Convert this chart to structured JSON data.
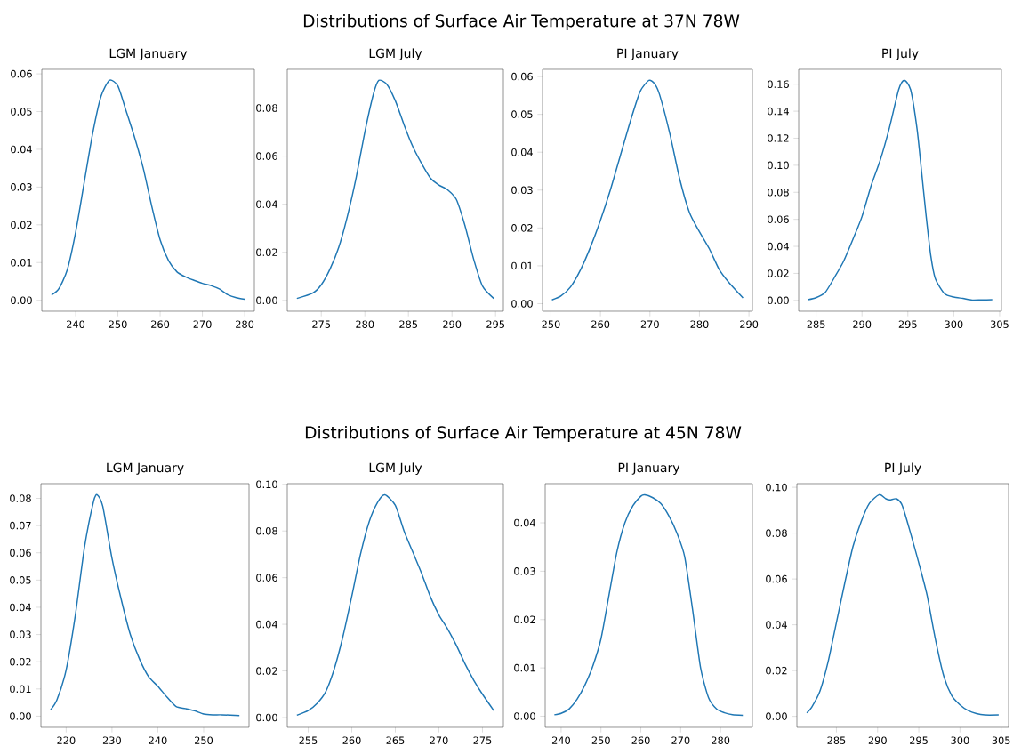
{
  "chart_data": [
    {
      "type": "line",
      "title": "LGM January",
      "annotations": [
        "Distributions of Surface Air Temperature at 37N 78W"
      ],
      "color": "#1f77b4",
      "x": [
        234.3,
        236,
        238,
        240,
        242,
        244,
        246,
        248,
        250,
        252,
        254,
        256,
        258,
        260,
        262,
        264,
        266,
        268,
        270,
        272,
        274,
        276,
        278,
        280
      ],
      "values": [
        0.0014,
        0.003,
        0.008,
        0.018,
        0.031,
        0.044,
        0.054,
        0.0583,
        0.0568,
        0.05,
        0.043,
        0.035,
        0.025,
        0.016,
        0.0105,
        0.0075,
        0.0062,
        0.0053,
        0.0045,
        0.0039,
        0.003,
        0.0015,
        0.0007,
        0.0003
      ],
      "xlim": [
        232,
        282.3
      ],
      "ylim": [
        -0.0029,
        0.0612
      ],
      "xticks": [
        240,
        250,
        260,
        270,
        280
      ],
      "yticks": [
        {
          "value": 0,
          "label": "0.00"
        },
        {
          "value": 0.01,
          "label": "0.01"
        },
        {
          "value": 0.02,
          "label": "0.02"
        },
        {
          "value": 0.03,
          "label": "0.03"
        },
        {
          "value": 0.04,
          "label": "0.04"
        },
        {
          "value": 0.05,
          "label": "0.05"
        },
        {
          "value": 0.06,
          "label": "0.06"
        }
      ]
    },
    {
      "type": "line",
      "title": "LGM July",
      "color": "#1f77b4",
      "x": [
        272.2,
        274,
        275,
        276,
        277,
        278,
        279,
        280,
        281,
        281.6,
        282.5,
        283.5,
        284.5,
        285.5,
        286.5,
        287.5,
        288.5,
        289.5,
        290.5,
        291.5,
        292.5,
        293.5,
        294.8
      ],
      "values": [
        0.0008,
        0.003,
        0.0065,
        0.013,
        0.022,
        0.035,
        0.051,
        0.07,
        0.086,
        0.0915,
        0.09,
        0.083,
        0.073,
        0.064,
        0.057,
        0.051,
        0.048,
        0.046,
        0.042,
        0.031,
        0.017,
        0.006,
        0.0008
      ],
      "xlim": [
        271.1,
        295.9
      ],
      "ylim": [
        -0.0045,
        0.0961
      ],
      "xticks": [
        275,
        280,
        285,
        290,
        295
      ],
      "yticks": [
        {
          "value": 0,
          "label": "0.00"
        },
        {
          "value": 0.02,
          "label": "0.02"
        },
        {
          "value": 0.04,
          "label": "0.04"
        },
        {
          "value": 0.06,
          "label": "0.06"
        },
        {
          "value": 0.08,
          "label": "0.08"
        }
      ]
    },
    {
      "type": "line",
      "title": "PI January",
      "color": "#1f77b4",
      "x": [
        250.2,
        252,
        254,
        256,
        258,
        260,
        262,
        264,
        266,
        268,
        269.8,
        271,
        272,
        274,
        276,
        278,
        280,
        282,
        284,
        286,
        288.8
      ],
      "values": [
        0.001,
        0.002,
        0.0045,
        0.009,
        0.015,
        0.022,
        0.03,
        0.039,
        0.048,
        0.056,
        0.059,
        0.058,
        0.055,
        0.045,
        0.033,
        0.024,
        0.019,
        0.0145,
        0.009,
        0.0055,
        0.0015
      ],
      "xlim": [
        248.3,
        290.7
      ],
      "ylim": [
        -0.002,
        0.0619
      ],
      "xticks": [
        250,
        260,
        270,
        280,
        290
      ],
      "yticks": [
        {
          "value": 0,
          "label": "0.00"
        },
        {
          "value": 0.01,
          "label": "0.01"
        },
        {
          "value": 0.02,
          "label": "0.02"
        },
        {
          "value": 0.03,
          "label": "0.03"
        },
        {
          "value": 0.04,
          "label": "0.04"
        },
        {
          "value": 0.05,
          "label": "0.05"
        },
        {
          "value": 0.06,
          "label": "0.06"
        }
      ]
    },
    {
      "type": "line",
      "title": "PI July",
      "color": "#1f77b4",
      "x": [
        284.1,
        285,
        286,
        287,
        288,
        289,
        290,
        291,
        292,
        293,
        294,
        294.6,
        295.3,
        296,
        296.5,
        297,
        297.5,
        298,
        299,
        300,
        301,
        302,
        303,
        304.2
      ],
      "values": [
        0.0005,
        0.002,
        0.006,
        0.017,
        0.029,
        0.045,
        0.062,
        0.085,
        0.104,
        0.128,
        0.156,
        0.163,
        0.156,
        0.127,
        0.095,
        0.062,
        0.033,
        0.016,
        0.005,
        0.0025,
        0.0015,
        0.0003,
        0.0004,
        0.0005
      ],
      "xlim": [
        283.1,
        305.2
      ],
      "ylim": [
        -0.008,
        0.171
      ],
      "xticks": [
        285,
        290,
        295,
        300,
        305
      ],
      "yticks": [
        {
          "value": 0,
          "label": "0.00"
        },
        {
          "value": 0.02,
          "label": "0.02"
        },
        {
          "value": 0.04,
          "label": "0.04"
        },
        {
          "value": 0.06,
          "label": "0.06"
        },
        {
          "value": 0.08,
          "label": "0.08"
        },
        {
          "value": 0.1,
          "label": "0.10"
        },
        {
          "value": 0.12,
          "label": "0.12"
        },
        {
          "value": 0.14,
          "label": "0.14"
        },
        {
          "value": 0.16,
          "label": "0.16"
        }
      ]
    },
    {
      "type": "line",
      "title": "LGM January",
      "annotations": [
        "Distributions of Surface Air Temperature at 45N 78W"
      ],
      "color": "#1f77b4",
      "x": [
        216.6,
        218,
        220,
        222,
        224,
        226,
        226.8,
        228,
        230,
        232,
        234,
        236,
        238,
        240,
        242,
        244,
        246,
        248,
        250,
        252,
        254,
        257.8
      ],
      "values": [
        0.0023,
        0.006,
        0.017,
        0.037,
        0.062,
        0.079,
        0.0813,
        0.077,
        0.058,
        0.043,
        0.03,
        0.021,
        0.0145,
        0.011,
        0.007,
        0.0035,
        0.0028,
        0.002,
        0.0008,
        0.0005,
        0.0005,
        0.0002
      ],
      "xlim": [
        214.5,
        259.9
      ],
      "ylim": [
        -0.0041,
        0.0854
      ],
      "xticks": [
        220,
        230,
        240,
        250
      ],
      "yticks": [
        {
          "value": 0,
          "label": "0.00"
        },
        {
          "value": 0.01,
          "label": "0.01"
        },
        {
          "value": 0.02,
          "label": "0.02"
        },
        {
          "value": 0.03,
          "label": "0.03"
        },
        {
          "value": 0.04,
          "label": "0.04"
        },
        {
          "value": 0.05,
          "label": "0.05"
        },
        {
          "value": 0.06,
          "label": "0.06"
        },
        {
          "value": 0.07,
          "label": "0.07"
        },
        {
          "value": 0.08,
          "label": "0.08"
        }
      ]
    },
    {
      "type": "line",
      "title": "LGM July",
      "color": "#1f77b4",
      "x": [
        253.7,
        255,
        256,
        257,
        258,
        259,
        260,
        261,
        262,
        263,
        263.8,
        265,
        266,
        267,
        268,
        269,
        270,
        271,
        272,
        273,
        274,
        275,
        276.3
      ],
      "values": [
        0.001,
        0.003,
        0.006,
        0.011,
        0.021,
        0.035,
        0.052,
        0.07,
        0.084,
        0.0925,
        0.0955,
        0.091,
        0.08,
        0.071,
        0.062,
        0.052,
        0.044,
        0.038,
        0.031,
        0.023,
        0.016,
        0.01,
        0.003
      ],
      "xlim": [
        252.6,
        277.4
      ],
      "ylim": [
        -0.0042,
        0.1003
      ],
      "xticks": [
        255,
        260,
        265,
        270,
        275
      ],
      "yticks": [
        {
          "value": 0,
          "label": "0.00"
        },
        {
          "value": 0.02,
          "label": "0.02"
        },
        {
          "value": 0.04,
          "label": "0.04"
        },
        {
          "value": 0.06,
          "label": "0.06"
        },
        {
          "value": 0.08,
          "label": "0.08"
        },
        {
          "value": 0.1,
          "label": "0.10"
        }
      ]
    },
    {
      "type": "line",
      "title": "PI January",
      "color": "#1f77b4",
      "x": [
        238.3,
        240,
        242,
        244,
        246,
        248,
        250,
        252,
        254,
        256,
        258,
        260,
        261,
        263,
        265,
        267,
        269,
        271,
        273,
        275,
        277,
        279,
        281,
        283,
        285.6
      ],
      "values": [
        0.0003,
        0.0006,
        0.0015,
        0.0035,
        0.0065,
        0.0105,
        0.016,
        0.025,
        0.034,
        0.04,
        0.0435,
        0.0455,
        0.0458,
        0.0452,
        0.044,
        0.0415,
        0.038,
        0.033,
        0.022,
        0.01,
        0.0038,
        0.0015,
        0.0007,
        0.0003,
        0.0002
      ],
      "xlim": [
        236,
        288
      ],
      "ylim": [
        -0.0023,
        0.0481
      ],
      "xticks": [
        240,
        250,
        260,
        270,
        280
      ],
      "yticks": [
        {
          "value": 0,
          "label": "0.00"
        },
        {
          "value": 0.01,
          "label": "0.01"
        },
        {
          "value": 0.02,
          "label": "0.02"
        },
        {
          "value": 0.03,
          "label": "0.03"
        },
        {
          "value": 0.04,
          "label": "0.04"
        }
      ]
    },
    {
      "type": "line",
      "title": "PI July",
      "color": "#1f77b4",
      "x": [
        281.4,
        282,
        283,
        284,
        285,
        286,
        287,
        288,
        289,
        290.2,
        291,
        291.5,
        292.3,
        293,
        294,
        295,
        296,
        297,
        298,
        299,
        300,
        301,
        302,
        303,
        304.7
      ],
      "values": [
        0.0015,
        0.004,
        0.011,
        0.024,
        0.041,
        0.058,
        0.074,
        0.085,
        0.093,
        0.0968,
        0.095,
        0.0945,
        0.095,
        0.092,
        0.08,
        0.067,
        0.053,
        0.034,
        0.018,
        0.009,
        0.005,
        0.0025,
        0.0012,
        0.0006,
        0.0006
      ],
      "xlim": [
        280.2,
        305.9
      ],
      "ylim": [
        -0.0048,
        0.1016
      ],
      "xticks": [
        285,
        290,
        295,
        300,
        305
      ],
      "yticks": [
        {
          "value": 0,
          "label": "0.00"
        },
        {
          "value": 0.02,
          "label": "0.02"
        },
        {
          "value": 0.04,
          "label": "0.04"
        },
        {
          "value": 0.06,
          "label": "0.06"
        },
        {
          "value": 0.08,
          "label": "0.08"
        },
        {
          "value": 0.1,
          "label": "0.10"
        }
      ]
    }
  ]
}
